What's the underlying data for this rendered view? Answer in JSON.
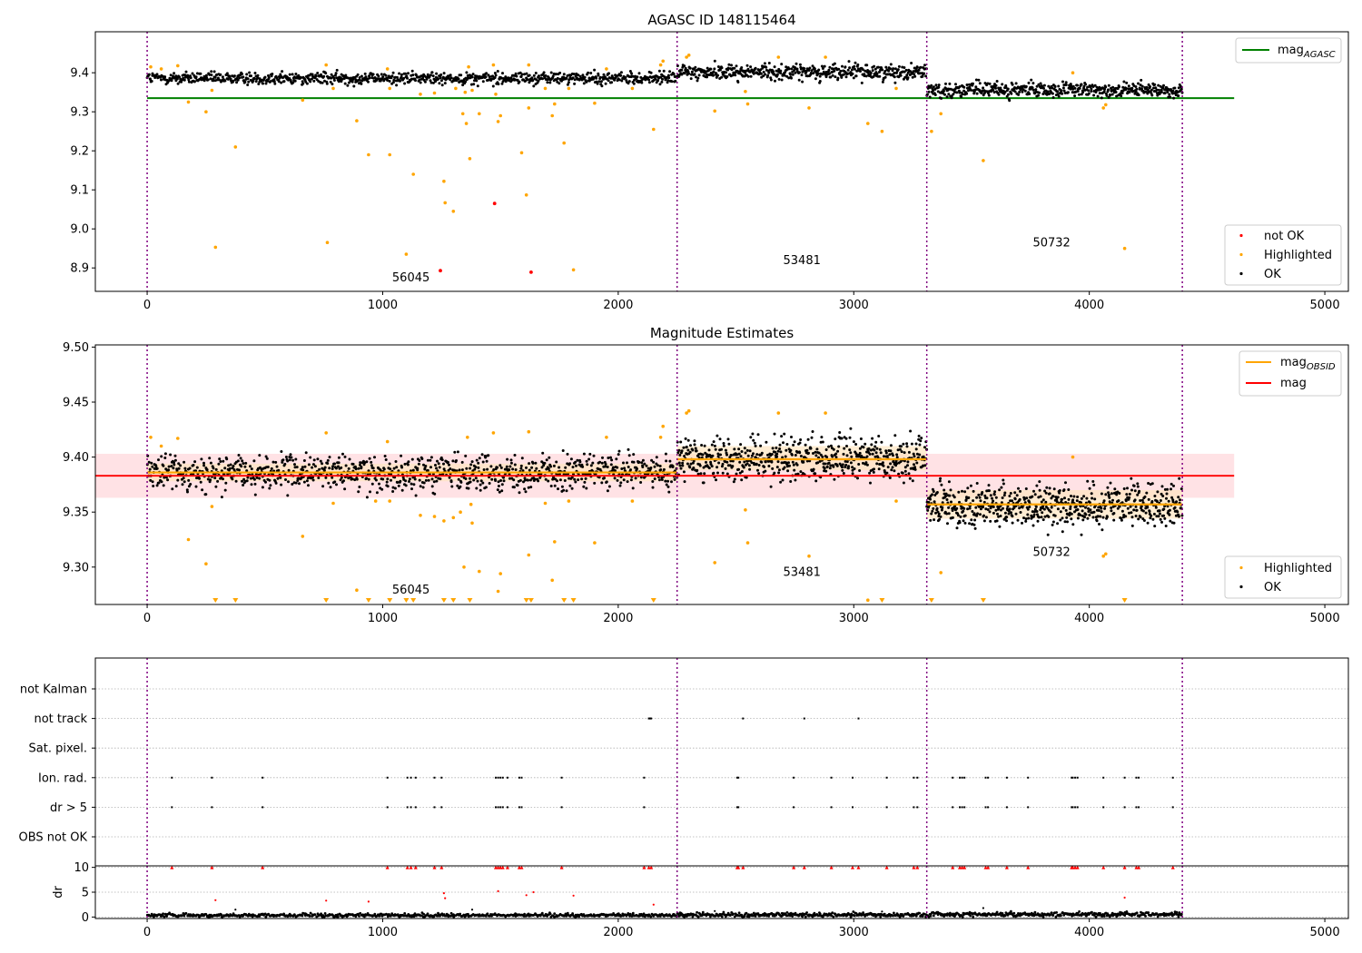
{
  "figure": {
    "background": "#ffffff"
  },
  "colors": {
    "ok": "#000000",
    "highlighted": "#ffa500",
    "not_ok": "#ff0000",
    "mag_agasc_line": "#008000",
    "mag_obsid_line": "#ffa500",
    "mag_line": "#ff0000",
    "mag_band": "#ffd8dc",
    "obsid_band": "#ffe6c0",
    "obsid_divider": "#800080",
    "grid": "#b0b0b0"
  },
  "chart_data": [
    {
      "id": "agasc",
      "type": "scatter",
      "title": "AGASC ID 148115464",
      "xlabel": "",
      "ylabel": "",
      "xlim": [
        -220,
        5100
      ],
      "ylim": [
        8.84,
        9.505
      ],
      "xticks": [
        0,
        1000,
        2000,
        3000,
        4000,
        5000
      ],
      "yticks": [
        8.9,
        9.0,
        9.1,
        9.2,
        9.3,
        9.4
      ],
      "ytick_labels": [
        "8.9",
        "9.0",
        "9.1",
        "9.2",
        "9.3",
        "9.4"
      ],
      "obsid_boundaries": [
        0,
        2250,
        3310,
        4395
      ],
      "obsid_labels": [
        {
          "text": "56045",
          "x": 1120,
          "y": 8.865
        },
        {
          "text": "53481",
          "x": 2780,
          "y": 8.91
        },
        {
          "text": "50732",
          "x": 3840,
          "y": 8.955
        }
      ],
      "hlines": [
        {
          "name": "mag_AGASC",
          "y": 9.335,
          "x0": 0,
          "x1": 4615,
          "color": "#008000"
        }
      ],
      "legend_top": {
        "position": "upper right",
        "entries": [
          {
            "kind": "line",
            "label": "mag",
            "sub": "AGASC",
            "color": "#008000"
          }
        ]
      },
      "legend_bottom": {
        "position": "lower right",
        "entries": [
          {
            "kind": "dot",
            "label": "not OK",
            "color": "#ff0000"
          },
          {
            "kind": "dot",
            "label": "Highlighted",
            "color": "#ffa500"
          },
          {
            "kind": "dot",
            "label": "OK",
            "color": "#000000"
          }
        ]
      },
      "ok_segments": [
        {
          "x0": 0,
          "x1": 2250,
          "mean": 9.386,
          "spread": 0.011,
          "n": 900
        },
        {
          "x0": 2250,
          "x1": 3310,
          "mean": 9.402,
          "spread": 0.014,
          "n": 480
        },
        {
          "x0": 3310,
          "x1": 4395,
          "mean": 9.356,
          "spread": 0.013,
          "n": 480
        }
      ],
      "highlighted_points": [
        [
          15,
          9.415
        ],
        [
          60,
          9.41
        ],
        [
          130,
          9.418
        ],
        [
          175,
          9.325
        ],
        [
          250,
          9.3
        ],
        [
          275,
          9.355
        ],
        [
          290,
          8.953
        ],
        [
          375,
          9.21
        ],
        [
          660,
          9.33
        ],
        [
          760,
          9.42
        ],
        [
          765,
          8.965
        ],
        [
          790,
          9.36
        ],
        [
          890,
          9.277
        ],
        [
          940,
          9.19
        ],
        [
          1020,
          9.41
        ],
        [
          1030,
          9.36
        ],
        [
          1030,
          9.19
        ],
        [
          1100,
          8.935
        ],
        [
          1130,
          9.14
        ],
        [
          1160,
          9.345
        ],
        [
          1220,
          9.348
        ],
        [
          1260,
          9.122
        ],
        [
          1265,
          9.067
        ],
        [
          1300,
          9.045
        ],
        [
          1310,
          9.36
        ],
        [
          1340,
          9.295
        ],
        [
          1350,
          9.35
        ],
        [
          1355,
          9.27
        ],
        [
          1365,
          9.415
        ],
        [
          1370,
          9.18
        ],
        [
          1380,
          9.355
        ],
        [
          1410,
          9.295
        ],
        [
          1470,
          9.42
        ],
        [
          1480,
          9.345
        ],
        [
          1490,
          9.275
        ],
        [
          1500,
          9.29
        ],
        [
          1590,
          9.195
        ],
        [
          1610,
          9.087
        ],
        [
          1620,
          9.42
        ],
        [
          1620,
          9.31
        ],
        [
          1690,
          9.36
        ],
        [
          1720,
          9.29
        ],
        [
          1730,
          9.32
        ],
        [
          1770,
          9.22
        ],
        [
          1790,
          9.36
        ],
        [
          1810,
          8.895
        ],
        [
          1900,
          9.322
        ],
        [
          1950,
          9.41
        ],
        [
          2060,
          9.36
        ],
        [
          2150,
          9.255
        ],
        [
          2180,
          9.42
        ],
        [
          2190,
          9.43
        ],
        [
          2290,
          9.44
        ],
        [
          2300,
          9.445
        ],
        [
          2410,
          9.302
        ],
        [
          2540,
          9.352
        ],
        [
          2550,
          9.32
        ],
        [
          2680,
          9.44
        ],
        [
          2810,
          9.31
        ],
        [
          2880,
          9.44
        ],
        [
          3060,
          9.27
        ],
        [
          3120,
          9.25
        ],
        [
          3180,
          9.36
        ],
        [
          3330,
          9.25
        ],
        [
          3370,
          9.295
        ],
        [
          3550,
          9.175
        ],
        [
          3930,
          9.4
        ],
        [
          4060,
          9.31
        ],
        [
          4070,
          9.318
        ],
        [
          4150,
          8.95
        ]
      ],
      "not_ok_points": [
        [
          1245,
          8.893
        ],
        [
          1475,
          9.065
        ],
        [
          1630,
          8.889
        ]
      ]
    },
    {
      "id": "magnitude",
      "type": "scatter",
      "title": "Magnitude Estimates",
      "xlabel": "",
      "ylabel": "",
      "xlim": [
        -220,
        5100
      ],
      "ylim": [
        9.266,
        9.502
      ],
      "xticks": [
        0,
        1000,
        2000,
        3000,
        4000,
        5000
      ],
      "yticks": [
        9.3,
        9.35,
        9.4,
        9.45,
        9.5
      ],
      "ytick_labels": [
        "9.30",
        "9.35",
        "9.40",
        "9.45",
        "9.50"
      ],
      "obsid_boundaries": [
        0,
        2250,
        3310,
        4395
      ],
      "obsid_labels": [
        {
          "text": "56045",
          "x": 1120,
          "y": 9.276
        },
        {
          "text": "53481",
          "x": 2780,
          "y": 9.292
        },
        {
          "text": "50732",
          "x": 3840,
          "y": 9.31
        }
      ],
      "mag": {
        "y": 9.383,
        "band": [
          9.363,
          9.403
        ],
        "x0": -220,
        "x1": 4615
      },
      "mag_obsid": [
        {
          "x0": 0,
          "x1": 2250,
          "y": 9.386,
          "band": [
            9.378,
            9.394
          ]
        },
        {
          "x0": 2250,
          "x1": 3310,
          "y": 9.398,
          "band": [
            9.388,
            9.41
          ]
        },
        {
          "x0": 3310,
          "x1": 4395,
          "y": 9.357,
          "band": [
            9.344,
            9.37
          ]
        }
      ],
      "legend_top": {
        "position": "upper right",
        "entries": [
          {
            "kind": "line",
            "label": "mag",
            "sub": "OBSID",
            "color": "#ffa500"
          },
          {
            "kind": "line",
            "label": "mag",
            "sub": "",
            "color": "#ff0000"
          }
        ]
      },
      "legend_bottom": {
        "position": "lower right",
        "entries": [
          {
            "kind": "dot",
            "label": "Highlighted",
            "color": "#ffa500"
          },
          {
            "kind": "dot",
            "label": "OK",
            "color": "#000000"
          }
        ]
      },
      "ok_segments": [
        {
          "x0": 0,
          "x1": 2250,
          "mean": 9.386,
          "spread": 0.011,
          "n": 1000
        },
        {
          "x0": 2250,
          "x1": 3310,
          "mean": 9.399,
          "spread": 0.014,
          "n": 600
        },
        {
          "x0": 3310,
          "x1": 4395,
          "mean": 9.356,
          "spread": 0.013,
          "n": 650
        }
      ],
      "highlighted_points": [
        [
          15,
          9.418
        ],
        [
          60,
          9.41
        ],
        [
          130,
          9.417
        ],
        [
          175,
          9.325
        ],
        [
          250,
          9.303
        ],
        [
          275,
          9.355
        ],
        [
          660,
          9.328
        ],
        [
          760,
          9.422
        ],
        [
          790,
          9.358
        ],
        [
          890,
          9.279
        ],
        [
          970,
          9.36
        ],
        [
          1020,
          9.414
        ],
        [
          1030,
          9.36
        ],
        [
          1160,
          9.347
        ],
        [
          1220,
          9.346
        ],
        [
          1260,
          9.342
        ],
        [
          1300,
          9.345
        ],
        [
          1330,
          9.35
        ],
        [
          1345,
          9.3
        ],
        [
          1360,
          9.418
        ],
        [
          1375,
          9.357
        ],
        [
          1380,
          9.34
        ],
        [
          1410,
          9.296
        ],
        [
          1470,
          9.422
        ],
        [
          1490,
          9.278
        ],
        [
          1500,
          9.294
        ],
        [
          1620,
          9.423
        ],
        [
          1620,
          9.311
        ],
        [
          1690,
          9.358
        ],
        [
          1720,
          9.288
        ],
        [
          1730,
          9.323
        ],
        [
          1790,
          9.36
        ],
        [
          1900,
          9.322
        ],
        [
          1950,
          9.418
        ],
        [
          2060,
          9.36
        ],
        [
          2180,
          9.418
        ],
        [
          2190,
          9.428
        ],
        [
          2290,
          9.44
        ],
        [
          2300,
          9.442
        ],
        [
          2410,
          9.304
        ],
        [
          2540,
          9.352
        ],
        [
          2550,
          9.322
        ],
        [
          2680,
          9.44
        ],
        [
          2810,
          9.31
        ],
        [
          2880,
          9.44
        ],
        [
          3060,
          9.27
        ],
        [
          3180,
          9.36
        ],
        [
          3370,
          9.295
        ],
        [
          3930,
          9.4
        ],
        [
          4060,
          9.31
        ],
        [
          4070,
          9.312
        ]
      ],
      "below_limit_points": [
        290,
        375,
        760,
        940,
        1030,
        1100,
        1130,
        1260,
        1300,
        1370,
        1610,
        1630,
        1770,
        1810,
        2150,
        3120,
        3330,
        3550,
        4150
      ]
    },
    {
      "id": "flags",
      "type": "scatter",
      "title": "",
      "xlabel": "",
      "ylabel": "",
      "xlim": [
        -220,
        5100
      ],
      "categories": [
        "not Kalman",
        "not track",
        "Sat. pixel.",
        "Ion. rad.",
        "dr > 5",
        "OBS not OK"
      ],
      "obsid_boundaries": [
        0,
        2250,
        3310,
        4395
      ],
      "flag_points": {
        "not Kalman": [],
        "not track": [
          2130,
          2135,
          2140,
          2530,
          2790,
          3020
        ],
        "Sat. pixel.": [],
        "Ion. rad.": [
          105,
          275,
          490,
          1020,
          1105,
          1120,
          1140,
          1220,
          1250,
          1480,
          1490,
          1500,
          1510,
          1530,
          1580,
          1590,
          1760,
          2110,
          2505,
          2510,
          2745,
          2905,
          2995,
          3140,
          3255,
          3270,
          3420,
          3450,
          3460,
          3470,
          3560,
          3570,
          3650,
          3740,
          3925,
          3930,
          3940,
          3950,
          4060,
          4150,
          4200,
          4210,
          4355
        ],
        "dr > 5": [
          105,
          275,
          490,
          1020,
          1105,
          1120,
          1140,
          1220,
          1250,
          1480,
          1490,
          1500,
          1510,
          1530,
          1580,
          1590,
          1760,
          2110,
          2505,
          2510,
          2745,
          2905,
          2995,
          3140,
          3255,
          3270,
          3420,
          3450,
          3460,
          3470,
          3560,
          3570,
          3650,
          3740,
          3925,
          3930,
          3940,
          3950,
          4060,
          4150,
          4200,
          4210,
          4355
        ],
        "OBS not OK": []
      }
    },
    {
      "id": "dr",
      "type": "scatter",
      "title": "",
      "xlabel": "",
      "ylabel": "dr",
      "xlim": [
        -220,
        5100
      ],
      "ylim": [
        -0.3,
        10.3
      ],
      "xticks": [
        0,
        1000,
        2000,
        3000,
        4000,
        5000
      ],
      "yticks": [
        0,
        5,
        10
      ],
      "ytick_labels": [
        "0",
        "5",
        "10"
      ],
      "obsid_boundaries": [
        0,
        2250,
        3310,
        4395
      ],
      "dr_segments": [
        {
          "x0": 0,
          "x1": 2250,
          "mean": 0.35,
          "spread": 0.25,
          "n": 600
        },
        {
          "x0": 2250,
          "x1": 3310,
          "mean": 0.45,
          "spread": 0.3,
          "n": 320
        },
        {
          "x0": 3310,
          "x1": 4395,
          "mean": 0.55,
          "spread": 0.35,
          "n": 320
        }
      ],
      "dr_outliers": [
        [
          290,
          3.4
        ],
        [
          375,
          1.5
        ],
        [
          760,
          3.3
        ],
        [
          940,
          3.1
        ],
        [
          1260,
          4.8
        ],
        [
          1265,
          3.8
        ],
        [
          1380,
          1.5
        ],
        [
          1490,
          5.2
        ],
        [
          1610,
          4.4
        ],
        [
          1640,
          5.0
        ],
        [
          1810,
          4.3
        ],
        [
          2150,
          2.5
        ],
        [
          2410,
          1.2
        ],
        [
          3120,
          1.1
        ],
        [
          3550,
          1.8
        ],
        [
          4150,
          3.9
        ]
      ],
      "capped_points": [
        105,
        275,
        490,
        1020,
        1105,
        1120,
        1140,
        1220,
        1250,
        1480,
        1490,
        1500,
        1510,
        1530,
        1580,
        1590,
        1760,
        2110,
        2130,
        2140,
        2505,
        2510,
        2530,
        2745,
        2790,
        2905,
        2995,
        3020,
        3140,
        3255,
        3270,
        3420,
        3450,
        3460,
        3470,
        3560,
        3570,
        3650,
        3740,
        3925,
        3930,
        3940,
        3950,
        4060,
        4150,
        4200,
        4210,
        4355
      ]
    }
  ]
}
